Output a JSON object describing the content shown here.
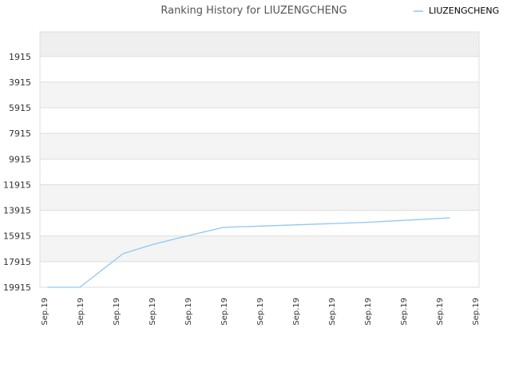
{
  "chart_data": {
    "type": "line",
    "title": "Ranking History for LIUZENGCHENG",
    "xlabel": "",
    "ylabel": "",
    "y_inverted": true,
    "ylim": [
      0,
      19915
    ],
    "yticks": [
      1915,
      3915,
      5915,
      7915,
      9915,
      11915,
      13915,
      15915,
      17915,
      19915
    ],
    "xticks": [
      "Sep.19",
      "Sep.19",
      "Sep.19",
      "Sep.19",
      "Sep.19",
      "Sep.19",
      "Sep.19",
      "Sep.19",
      "Sep.19",
      "Sep.19",
      "Sep.19",
      "Sep.19",
      "Sep.19"
    ],
    "grid": true,
    "legend_position": "top-right",
    "colors": {
      "line": "#90c8f0",
      "band_dark": "#efefef",
      "band_light": "#f4f4f4",
      "grid": "#dddddd"
    },
    "series": [
      {
        "name": "LIUZENGCHENG",
        "x": [
          0.1,
          1.0,
          2.2,
          3.0,
          4.0,
          5.0,
          5.4,
          6.0,
          7.0,
          8.0,
          9.0,
          10.0,
          11.3
        ],
        "y": [
          19915,
          19915,
          17300,
          16600,
          15900,
          15250,
          15200,
          15150,
          15050,
          14950,
          14850,
          14700,
          14500
        ]
      }
    ]
  }
}
